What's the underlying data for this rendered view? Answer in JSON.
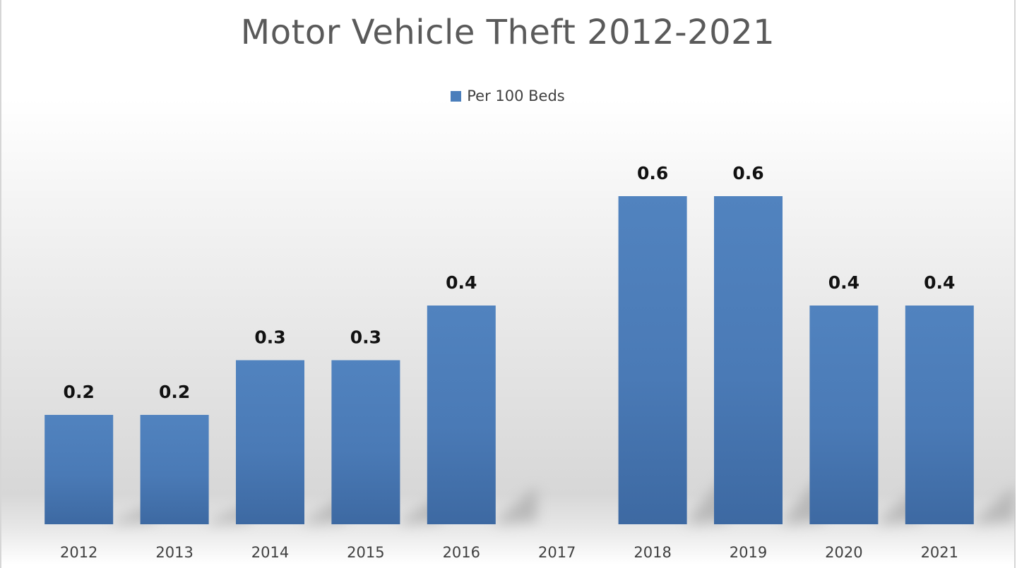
{
  "chart_data": {
    "type": "bar",
    "title": "Motor Vehicle Theft 2012-2021",
    "xlabel": "",
    "ylabel": "",
    "ylim": [
      0,
      0.6
    ],
    "legend_position": "top",
    "grid": false,
    "categories": [
      "2012",
      "2013",
      "2014",
      "2015",
      "2016",
      "2017",
      "2018",
      "2019",
      "2020",
      "2021"
    ],
    "series": [
      {
        "name": "Per 100 Beds",
        "color": "#4a7ebb",
        "values": [
          0.2,
          0.2,
          0.3,
          0.3,
          0.4,
          null,
          0.6,
          0.6,
          0.4,
          0.4
        ],
        "labels": [
          "0.2",
          "0.2",
          "0.3",
          "0.3",
          "0.4",
          "",
          "0.6",
          "0.6",
          "0.4",
          "0.4"
        ]
      }
    ]
  }
}
